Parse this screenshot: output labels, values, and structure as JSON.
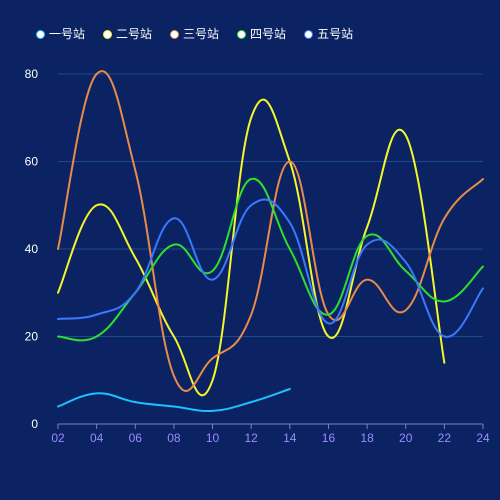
{
  "chart_data": {
    "type": "line",
    "smooth": true,
    "x": [
      "02",
      "04",
      "06",
      "08",
      "10",
      "12",
      "14",
      "16",
      "18",
      "20",
      "22",
      "24"
    ],
    "ylim": [
      0,
      80
    ],
    "yticks": [
      0,
      20,
      40,
      60,
      80
    ],
    "grid": true,
    "legend_position": "top-left",
    "series": [
      {
        "name": "一号站",
        "color": "#1ec0ff",
        "values": [
          4,
          7,
          5,
          4,
          3,
          5,
          8,
          null,
          null,
          null,
          null,
          null
        ]
      },
      {
        "name": "二号站",
        "color": "#f5f52a",
        "values": [
          30,
          50,
          38,
          20,
          10,
          70,
          60,
          20,
          45,
          66,
          14,
          null
        ]
      },
      {
        "name": "三号站",
        "color": "#e98a4a",
        "values": [
          40,
          80,
          58,
          11,
          15,
          25,
          60,
          25,
          33,
          26,
          47,
          56
        ]
      },
      {
        "name": "四号站",
        "color": "#2ce02c",
        "values": [
          20,
          20,
          30,
          41,
          35,
          56,
          40,
          25,
          43,
          35,
          28,
          36
        ]
      },
      {
        "name": "五号站",
        "color": "#3a78ff",
        "values": [
          24,
          25,
          30,
          47,
          33,
          50,
          46,
          23,
          41,
          37,
          20,
          31
        ]
      }
    ]
  }
}
